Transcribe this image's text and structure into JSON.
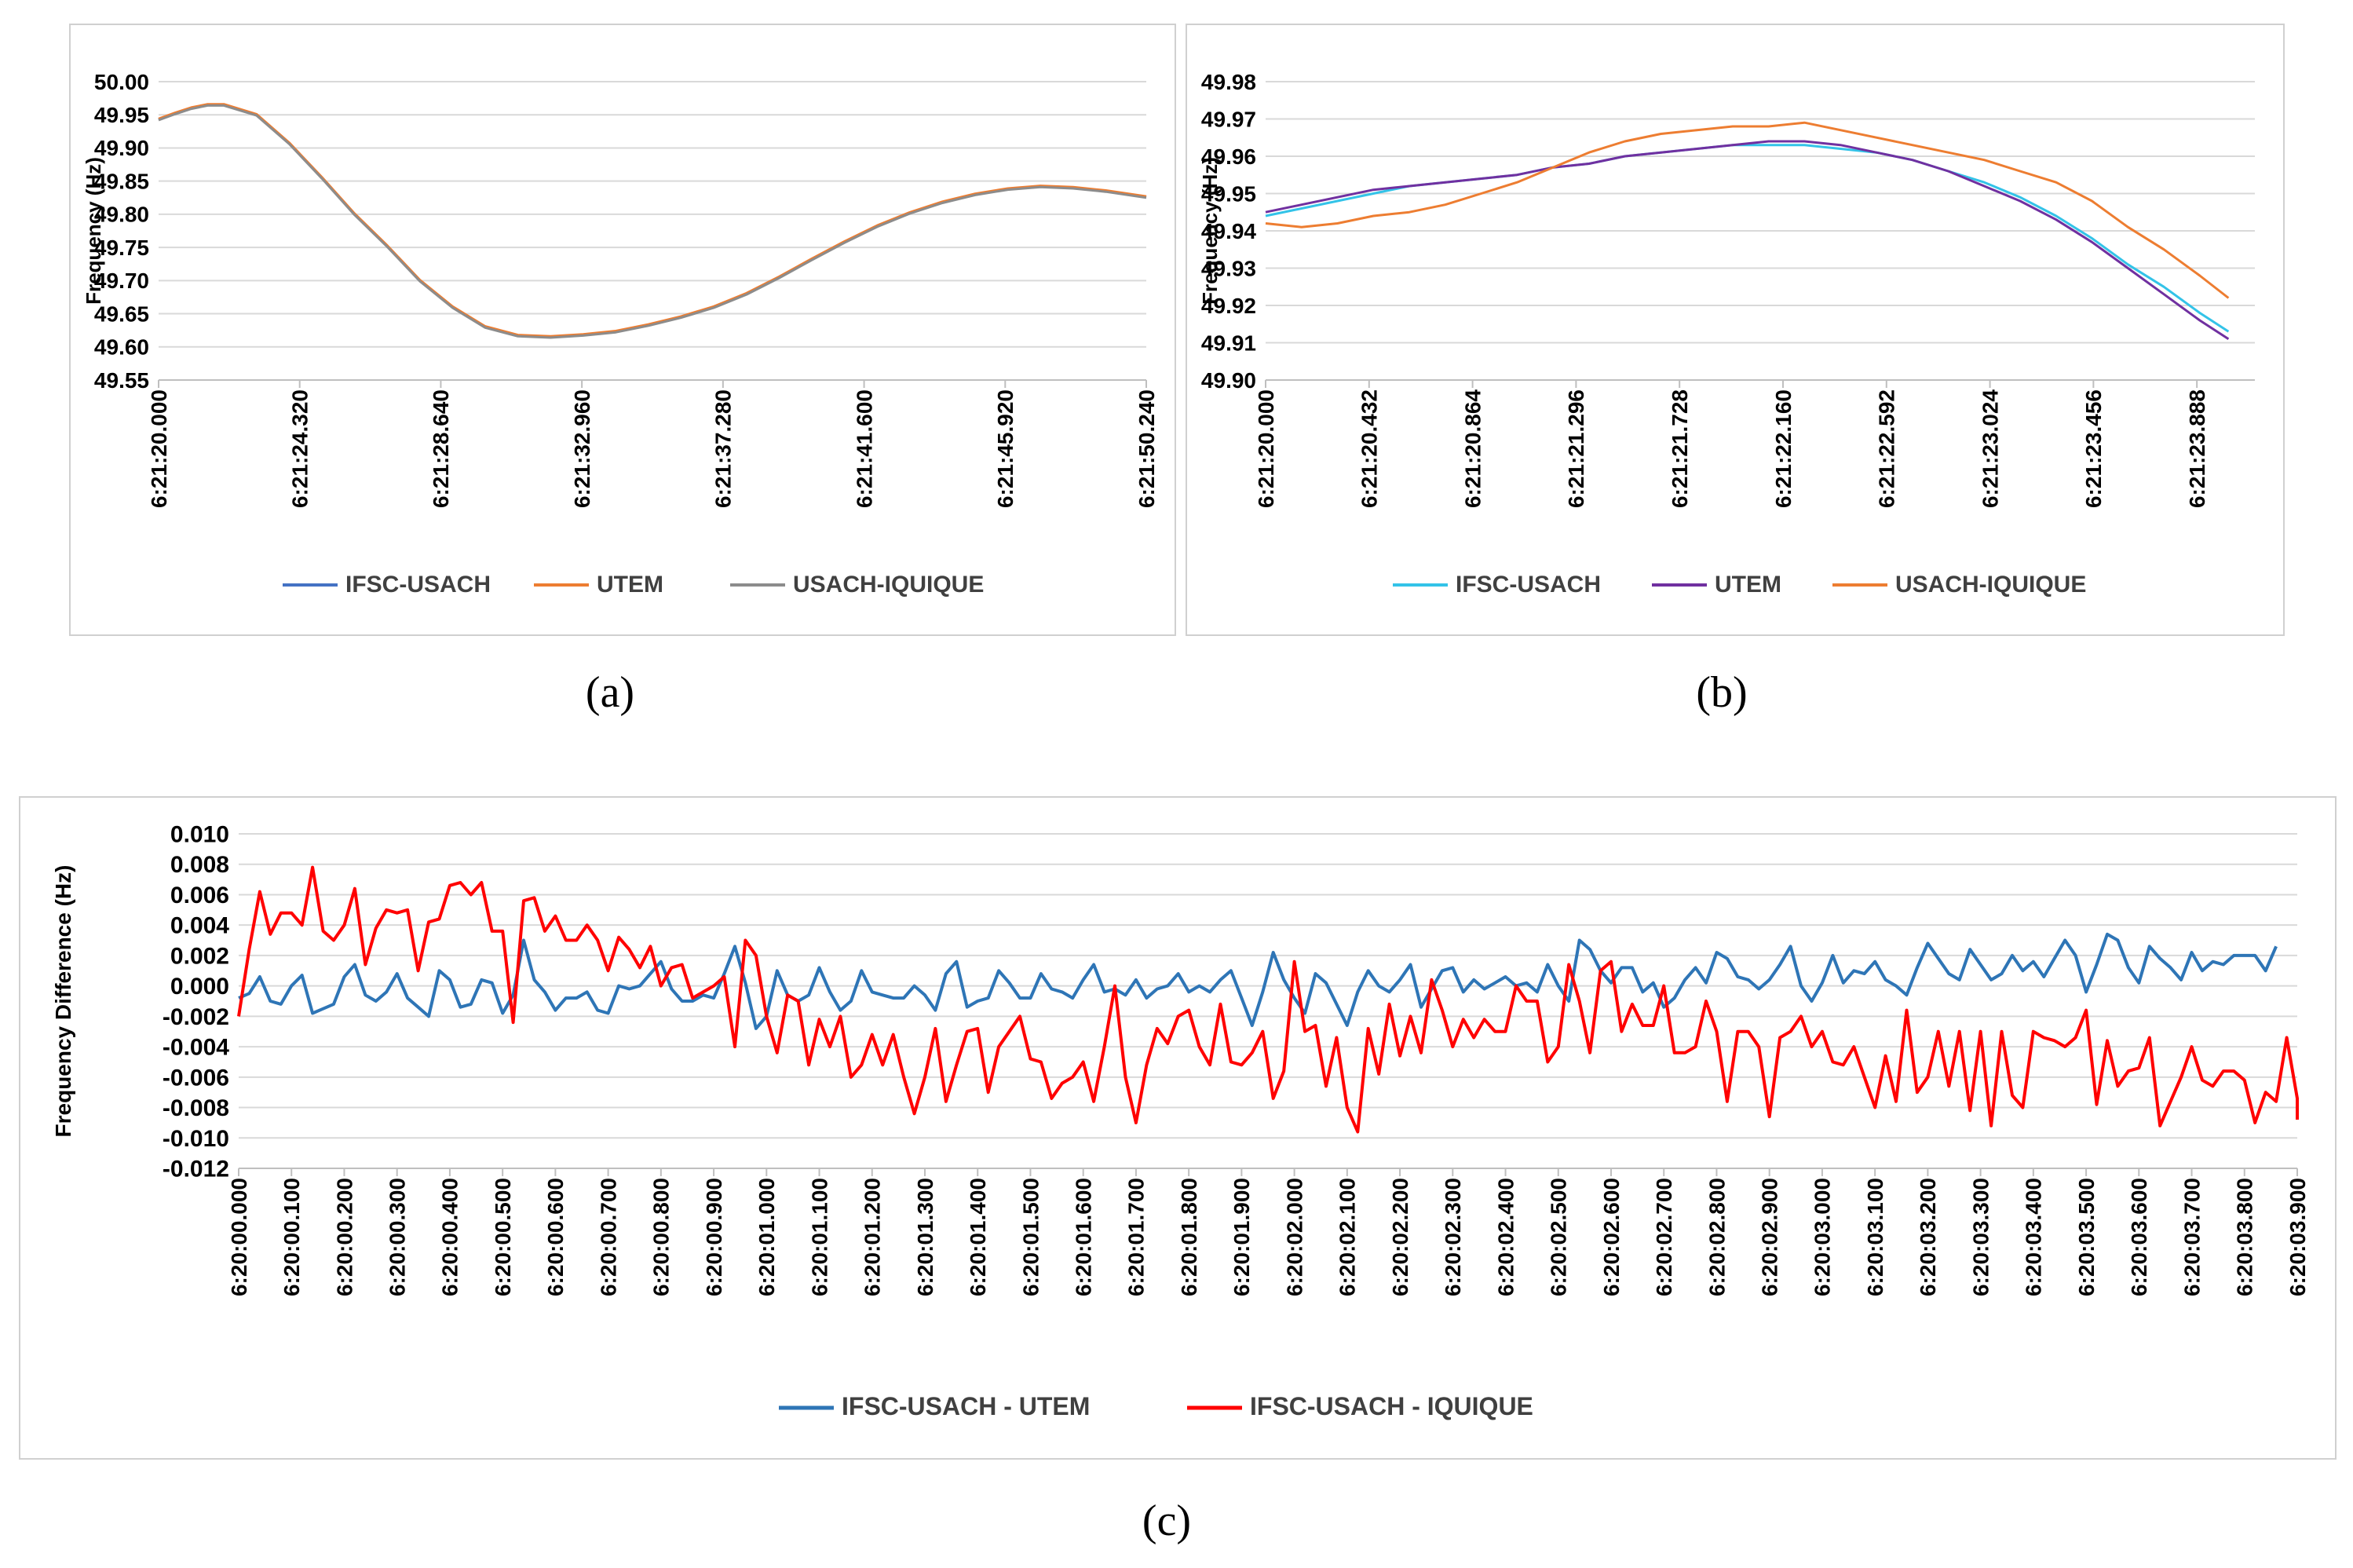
{
  "captions": {
    "a": "(a)",
    "b": "(b)",
    "c": "(c)"
  },
  "chart_data": [
    {
      "id": "a",
      "type": "line",
      "title": "",
      "xlabel": "",
      "ylabel": "Frequency (Hz)",
      "ylim": [
        49.55,
        50.0
      ],
      "yticks": [
        "49.55",
        "49.60",
        "49.65",
        "49.70",
        "49.75",
        "49.80",
        "49.85",
        "49.90",
        "49.95",
        "50.00"
      ],
      "xticks": [
        "6:21:20.000",
        "6:21:24.320",
        "6:21:28.640",
        "6:21:32.960",
        "6:21:37.280",
        "6:21:41.600",
        "6:21:45.920",
        "6:21:50.240"
      ],
      "grid": true,
      "legend": "bottom",
      "x": [
        0,
        0.5,
        1,
        1.5,
        2,
        3,
        4,
        5,
        6,
        7,
        8,
        9,
        10,
        11,
        12,
        13,
        14,
        15,
        16,
        17,
        18,
        19,
        20,
        21,
        22,
        23,
        24,
        25,
        26,
        27,
        28,
        29,
        30.24
      ],
      "series": [
        {
          "name": "IFSC-USACH",
          "color": "#4472C4",
          "values": [
            49.943,
            49.952,
            49.96,
            49.965,
            49.965,
            49.95,
            49.907,
            49.855,
            49.8,
            49.752,
            49.7,
            49.66,
            49.63,
            49.617,
            49.615,
            49.618,
            49.623,
            49.633,
            49.645,
            49.66,
            49.68,
            49.705,
            49.732,
            49.758,
            49.782,
            49.802,
            49.818,
            49.83,
            49.838,
            49.842,
            49.84,
            49.835,
            49.826
          ]
        },
        {
          "name": "UTEM",
          "color": "#ED7D31",
          "values": [
            49.944,
            49.953,
            49.961,
            49.966,
            49.966,
            49.951,
            49.908,
            49.856,
            49.801,
            49.753,
            49.701,
            49.661,
            49.631,
            49.618,
            49.616,
            49.619,
            49.624,
            49.634,
            49.646,
            49.661,
            49.681,
            49.706,
            49.733,
            49.759,
            49.783,
            49.803,
            49.819,
            49.831,
            49.839,
            49.843,
            49.841,
            49.836,
            49.827
          ]
        },
        {
          "name": "USACH-IQUIQUE",
          "color": "#8C8C8C",
          "values": [
            49.942,
            49.951,
            49.959,
            49.964,
            49.964,
            49.949,
            49.906,
            49.854,
            49.799,
            49.751,
            49.699,
            49.659,
            49.629,
            49.616,
            49.614,
            49.617,
            49.622,
            49.632,
            49.644,
            49.659,
            49.679,
            49.704,
            49.731,
            49.757,
            49.781,
            49.801,
            49.817,
            49.829,
            49.837,
            49.841,
            49.839,
            49.834,
            49.825
          ]
        }
      ]
    },
    {
      "id": "b",
      "type": "line",
      "title": "",
      "xlabel": "",
      "ylabel": "Frequency (Hz)",
      "ylim": [
        49.9,
        49.98
      ],
      "yticks": [
        "49.90",
        "49.91",
        "49.92",
        "49.93",
        "49.94",
        "49.95",
        "49.96",
        "49.97",
        "49.98"
      ],
      "xticks": [
        "6:21:20.000",
        "6:21:20.432",
        "6:21:20.864",
        "6:21:21.296",
        "6:21:21.728",
        "6:21:22.160",
        "6:21:22.592",
        "6:21:23.024",
        "6:21:23.456",
        "6:21:23.888"
      ],
      "grid": true,
      "legend": "bottom",
      "x": [
        0,
        0.15,
        0.3,
        0.45,
        0.6,
        0.75,
        0.9,
        1.05,
        1.2,
        1.35,
        1.5,
        1.65,
        1.8,
        1.95,
        2.1,
        2.25,
        2.4,
        2.55,
        2.7,
        2.85,
        3.0,
        3.15,
        3.3,
        3.45,
        3.6,
        3.75,
        3.9,
        4.02
      ],
      "series": [
        {
          "name": "IFSC-USACH",
          "color": "#33C3E8",
          "values": [
            49.944,
            49.946,
            49.948,
            49.95,
            49.952,
            49.953,
            49.954,
            49.955,
            49.957,
            49.958,
            49.96,
            49.961,
            49.962,
            49.963,
            49.963,
            49.963,
            49.962,
            49.961,
            49.959,
            49.956,
            49.953,
            49.949,
            49.944,
            49.938,
            49.931,
            49.925,
            49.918,
            49.913
          ]
        },
        {
          "name": "UTEM",
          "color": "#7030A0",
          "values": [
            49.945,
            49.947,
            49.949,
            49.951,
            49.952,
            49.953,
            49.954,
            49.955,
            49.957,
            49.958,
            49.96,
            49.961,
            49.962,
            49.963,
            49.964,
            49.964,
            49.963,
            49.961,
            49.959,
            49.956,
            49.952,
            49.948,
            49.943,
            49.937,
            49.93,
            49.923,
            49.916,
            49.911
          ]
        },
        {
          "name": "USACH-IQUIQUE",
          "color": "#ED7D31",
          "values": [
            49.942,
            49.941,
            49.942,
            49.944,
            49.945,
            49.947,
            49.95,
            49.953,
            49.957,
            49.961,
            49.964,
            49.966,
            49.967,
            49.968,
            49.968,
            49.969,
            49.967,
            49.965,
            49.963,
            49.961,
            49.959,
            49.956,
            49.953,
            49.948,
            49.941,
            49.935,
            49.928,
            49.922
          ]
        }
      ]
    },
    {
      "id": "c",
      "type": "line",
      "title": "",
      "xlabel": "",
      "ylabel": "Frequency Difference (Hz)",
      "ylim": [
        -0.012,
        0.01
      ],
      "yticks": [
        "-0.012",
        "-0.010",
        "-0.008",
        "-0.006",
        "-0.004",
        "-0.002",
        "0.000",
        "0.002",
        "0.004",
        "0.006",
        "0.008",
        "0.010"
      ],
      "xticks": [
        "6:20:00.000",
        "6:20:00.100",
        "6:20:00.200",
        "6:20:00.300",
        "6:20:00.400",
        "6:20:00.500",
        "6:20:00.600",
        "6:20:00.700",
        "6:20:00.800",
        "6:20:00.900",
        "6:20:01.000",
        "6:20:01.100",
        "6:20:01.200",
        "6:20:01.300",
        "6:20:01.400",
        "6:20:01.500",
        "6:20:01.600",
        "6:20:01.700",
        "6:20:01.800",
        "6:20:01.900",
        "6:20:02.000",
        "6:20:02.100",
        "6:20:02.200",
        "6:20:02.300",
        "6:20:02.400",
        "6:20:02.500",
        "6:20:02.600",
        "6:20:02.700",
        "6:20:02.800",
        "6:20:02.900",
        "6:20:03.000",
        "6:20:03.100",
        "6:20:03.200",
        "6:20:03.300",
        "6:20:03.400",
        "6:20:03.500",
        "6:20:03.600",
        "6:20:03.700",
        "6:20:03.800",
        "6:20:03.900"
      ],
      "grid": true,
      "legend": "bottom",
      "x_step": 0.02,
      "series": [
        {
          "name": "IFSC-USACH - UTEM",
          "color": "#2E75B6",
          "values": [
            -0.0008,
            -0.0005,
            0.0006,
            -0.001,
            -0.0012,
            0.0,
            0.0007,
            -0.0018,
            -0.0015,
            -0.0012,
            0.0006,
            0.0014,
            -0.0006,
            -0.001,
            -0.0004,
            0.0008,
            -0.0008,
            -0.0014,
            -0.002,
            0.001,
            0.0004,
            -0.0014,
            -0.0012,
            0.0004,
            0.0002,
            -0.0018,
            -0.0006,
            0.003,
            0.0004,
            -0.0004,
            -0.0016,
            -0.0008,
            -0.0008,
            -0.0004,
            -0.0016,
            -0.0018,
            0.0,
            -0.0002,
            0.0,
            0.0008,
            0.0016,
            -0.0002,
            -0.001,
            -0.001,
            -0.0006,
            -0.0008,
            0.0008,
            0.0026,
            0.0002,
            -0.0028,
            -0.002,
            0.001,
            -0.0006,
            -0.001,
            -0.0006,
            0.0012,
            -0.0004,
            -0.0016,
            -0.001,
            0.001,
            -0.0004,
            -0.0006,
            -0.0008,
            -0.0008,
            0.0,
            -0.0006,
            -0.0016,
            0.0008,
            0.0016,
            -0.0014,
            -0.001,
            -0.0008,
            0.001,
            0.0002,
            -0.0008,
            -0.0008,
            0.0008,
            -0.0002,
            -0.0004,
            -0.0008,
            0.0004,
            0.0014,
            -0.0004,
            -0.0002,
            -0.0006,
            0.0004,
            -0.0008,
            -0.0002,
            0.0,
            0.0008,
            -0.0004,
            0.0,
            -0.0004,
            0.0004,
            0.001,
            -0.0008,
            -0.0026,
            -0.0004,
            0.0022,
            0.0004,
            -0.0008,
            -0.0018,
            0.0008,
            0.0002,
            -0.0012,
            -0.0026,
            -0.0004,
            0.001,
            0.0,
            -0.0004,
            0.0004,
            0.0014,
            -0.0014,
            -0.0002,
            0.001,
            0.0012,
            -0.0004,
            0.0004,
            -0.0002,
            0.0002,
            0.0006,
            0.0,
            0.0002,
            -0.0004,
            0.0014,
            0.0,
            -0.001,
            0.003,
            0.0024,
            0.001,
            0.0002,
            0.0012,
            0.0012,
            -0.0004,
            0.0002,
            -0.0014,
            -0.0008,
            0.0004,
            0.0012,
            0.0002,
            0.0022,
            0.0018,
            0.0006,
            0.0004,
            -0.0002,
            0.0004,
            0.0014,
            0.0026,
            0.0,
            -0.001,
            0.0002,
            0.002,
            0.0002,
            0.001,
            0.0008,
            0.0016,
            0.0004,
            0.0,
            -0.0006,
            0.0012,
            0.0028,
            0.0018,
            0.0008,
            0.0004,
            0.0024,
            0.0014,
            0.0004,
            0.0008,
            0.002,
            0.001,
            0.0016,
            0.0006,
            0.0018,
            0.003,
            0.002,
            -0.0004,
            0.0014,
            0.0034,
            0.003,
            0.0012,
            0.0002,
            0.0026,
            0.0018,
            0.0012,
            0.0004,
            0.0022,
            0.001,
            0.0016,
            0.0014,
            0.002,
            0.002,
            0.002,
            0.001,
            0.0026
          ]
        },
        {
          "name": "IFSC-USACH - IQUIQUE",
          "color": "#FF0000",
          "values": [
            -0.002,
            0.0024,
            0.0062,
            0.0034,
            0.0048,
            0.0048,
            0.004,
            0.0078,
            0.0036,
            0.003,
            0.004,
            0.0064,
            0.0014,
            0.0038,
            0.005,
            0.0048,
            0.005,
            0.001,
            0.0042,
            0.0044,
            0.0066,
            0.0068,
            0.006,
            0.0068,
            0.0036,
            0.0036,
            -0.0024,
            0.0056,
            0.0058,
            0.0036,
            0.0046,
            0.003,
            0.003,
            0.004,
            0.003,
            0.001,
            0.0032,
            0.0024,
            0.0012,
            0.0026,
            0.0,
            0.0012,
            0.0014,
            -0.0008,
            -0.0004,
            0.0,
            0.0006,
            -0.004,
            0.003,
            0.002,
            -0.002,
            -0.0044,
            -0.0006,
            -0.001,
            -0.0052,
            -0.0022,
            -0.004,
            -0.002,
            -0.006,
            -0.0052,
            -0.0032,
            -0.0052,
            -0.0032,
            -0.006,
            -0.0084,
            -0.006,
            -0.0028,
            -0.0076,
            -0.0052,
            -0.003,
            -0.0028,
            -0.007,
            -0.004,
            -0.003,
            -0.002,
            -0.0048,
            -0.005,
            -0.0074,
            -0.0064,
            -0.006,
            -0.005,
            -0.0076,
            -0.004,
            0.0,
            -0.006,
            -0.009,
            -0.0052,
            -0.0028,
            -0.0038,
            -0.002,
            -0.0016,
            -0.004,
            -0.0052,
            -0.0012,
            -0.005,
            -0.0052,
            -0.0044,
            -0.003,
            -0.0074,
            -0.0056,
            0.0016,
            -0.003,
            -0.0026,
            -0.0066,
            -0.0034,
            -0.008,
            -0.0096,
            -0.0028,
            -0.0058,
            -0.0012,
            -0.0046,
            -0.002,
            -0.0044,
            0.0004,
            -0.0016,
            -0.004,
            -0.0022,
            -0.0034,
            -0.0022,
            -0.003,
            -0.003,
            0.0,
            -0.001,
            -0.001,
            -0.005,
            -0.004,
            0.0014,
            -0.001,
            -0.0044,
            0.001,
            0.0016,
            -0.003,
            -0.0012,
            -0.0026,
            -0.0026,
            0.0,
            -0.0044,
            -0.0044,
            -0.004,
            -0.001,
            -0.003,
            -0.0076,
            -0.003,
            -0.003,
            -0.004,
            -0.0086,
            -0.0034,
            -0.003,
            -0.002,
            -0.004,
            -0.003,
            -0.005,
            -0.0052,
            -0.004,
            -0.006,
            -0.008,
            -0.0046,
            -0.0076,
            -0.0016,
            -0.007,
            -0.006,
            -0.003,
            -0.0066,
            -0.003,
            -0.0082,
            -0.003,
            -0.0092,
            -0.003,
            -0.0072,
            -0.008,
            -0.003,
            -0.0034,
            -0.0036,
            -0.004,
            -0.0034,
            -0.0016,
            -0.0078,
            -0.0036,
            -0.0066,
            -0.0056,
            -0.0054,
            -0.0034,
            -0.0092,
            -0.0076,
            -0.006,
            -0.004,
            -0.0062,
            -0.0066,
            -0.0056,
            -0.0056,
            -0.0062,
            -0.009,
            -0.007,
            -0.0076,
            -0.0034,
            -0.0074,
            -0.0088
          ]
        }
      ]
    }
  ]
}
